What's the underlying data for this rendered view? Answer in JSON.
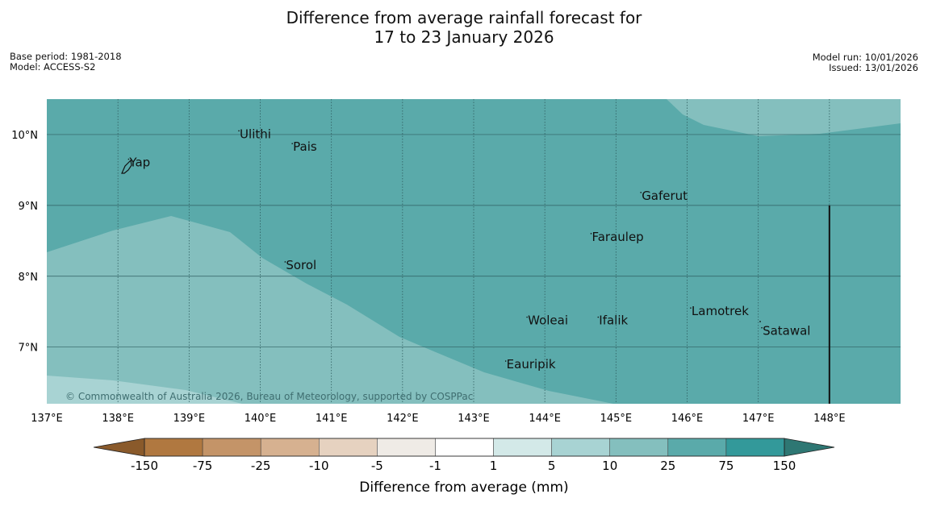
{
  "title": {
    "line1": "Difference from average rainfall forecast for",
    "line2": "17 to 23 January 2026"
  },
  "info_left": {
    "base_period": "Base period: 1981-2018",
    "model": "Model: ACCESS-S2"
  },
  "info_right": {
    "model_run": "Model run: 10/01/2026",
    "issued": "Issued: 13/01/2026"
  },
  "map": {
    "lon_range": [
      137,
      149
    ],
    "lat_range": [
      6.2,
      10.5
    ],
    "lon_ticks": [
      {
        "value": 137,
        "label": "137°E"
      },
      {
        "value": 138,
        "label": "138°E"
      },
      {
        "value": 139,
        "label": "139°E"
      },
      {
        "value": 140,
        "label": "140°E"
      },
      {
        "value": 141,
        "label": "141°E"
      },
      {
        "value": 142,
        "label": "142°E"
      },
      {
        "value": 143,
        "label": "143°E"
      },
      {
        "value": 144,
        "label": "144°E"
      },
      {
        "value": 145,
        "label": "145°E"
      },
      {
        "value": 146,
        "label": "146°E"
      },
      {
        "value": 147,
        "label": "147°E"
      },
      {
        "value": 148,
        "label": "148°E"
      }
    ],
    "lat_ticks": [
      {
        "value": 10,
        "label": "10°N"
      },
      {
        "value": 9,
        "label": "9°N"
      },
      {
        "value": 8,
        "label": "8°N"
      },
      {
        "value": 7,
        "label": "7°N"
      }
    ],
    "places": [
      {
        "name": "Yap",
        "lon": 138.15,
        "lat": 9.55
      },
      {
        "name": "Ulithi",
        "lon": 139.7,
        "lat": 9.95
      },
      {
        "name": "Pais",
        "lon": 140.45,
        "lat": 9.77
      },
      {
        "name": "Gaferut",
        "lon": 145.35,
        "lat": 9.08
      },
      {
        "name": "Faraulep",
        "lon": 144.65,
        "lat": 8.5
      },
      {
        "name": "Sorol",
        "lon": 140.35,
        "lat": 8.1
      },
      {
        "name": "Lamotrek",
        "lon": 146.05,
        "lat": 7.45
      },
      {
        "name": "Satawal",
        "lon": 147.05,
        "lat": 7.17
      },
      {
        "name": "Woleai",
        "lon": 143.75,
        "lat": 7.32
      },
      {
        "name": "Ifalik",
        "lon": 144.75,
        "lat": 7.32
      },
      {
        "name": "Eauripik",
        "lon": 143.45,
        "lat": 6.7
      }
    ],
    "boundary_line": {
      "lon": 148,
      "lat_top": 9.0
    },
    "copyright": "© Commonwealth of Australia 2026, Bureau of Meteorology, supported by COSPPac"
  },
  "legend": {
    "title": "Difference from average (mm)",
    "tick_labels": [
      "-150",
      "-75",
      "-25",
      "-10",
      "-5",
      "-1",
      "1",
      "5",
      "10",
      "25",
      "75",
      "150"
    ],
    "colors": {
      "below_min": "#8a5a2b",
      "bins": [
        "#b07840",
        "#c49468",
        "#d6b190",
        "#e6d2c0",
        "#efebe6",
        "#ffffff",
        "#d3e9e8",
        "#a8d3d3",
        "#84bfbe",
        "#5aaaaa",
        "#33999a"
      ],
      "above_max": "#2e7773"
    }
  },
  "colors": {
    "band_10_25": "#84bfbe",
    "band_25_75": "#5aaaaa",
    "band_5_10": "#a8d3d3",
    "grid": "#2f5e60"
  }
}
